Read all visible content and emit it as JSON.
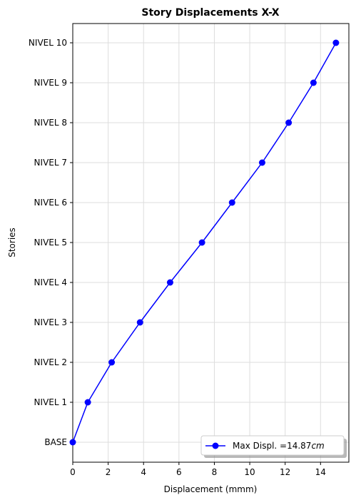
{
  "chart_data": {
    "type": "line",
    "title": "Story Displacements X-X",
    "xlabel": "Displacement (mmm)",
    "ylabel": "Stories",
    "xlim": [
      0,
      15.6
    ],
    "xticks": [
      0,
      2,
      4,
      6,
      8,
      10,
      12,
      14
    ],
    "categories": [
      "BASE",
      "NIVEL 1",
      "NIVEL 2",
      "NIVEL 3",
      "NIVEL 4",
      "NIVEL 5",
      "NIVEL 6",
      "NIVEL 7",
      "NIVEL 8",
      "NIVEL 9",
      "NIVEL 10"
    ],
    "grid": true,
    "legend_position": "lower-right",
    "series": [
      {
        "name": "Max Displ. =14.87",
        "name_unit": "cm",
        "color": "#0000ff",
        "marker": "circle",
        "x": [
          0,
          0.85,
          2.2,
          3.8,
          5.5,
          7.3,
          9.0,
          10.7,
          12.2,
          13.6,
          14.87
        ]
      }
    ]
  }
}
